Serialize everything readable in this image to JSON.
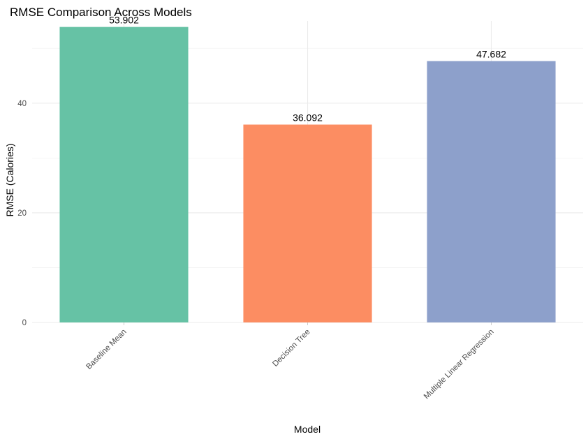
{
  "chart_data": {
    "type": "bar",
    "title": "RMSE Comparison Across Models",
    "xlabel": "Model",
    "ylabel": "RMSE (Calories)",
    "categories": [
      "Baseline Mean",
      "Decision Tree",
      "Multiple Linear Regression"
    ],
    "values": [
      53.902,
      36.092,
      47.682
    ],
    "value_labels": [
      "53.902",
      "36.092",
      "47.682"
    ],
    "colors": [
      "#66c2a5",
      "#fc8d62",
      "#8da0cb"
    ],
    "ylim": [
      0,
      55
    ],
    "yticks": [
      0,
      20,
      40
    ],
    "grid": true,
    "legend": "none"
  }
}
